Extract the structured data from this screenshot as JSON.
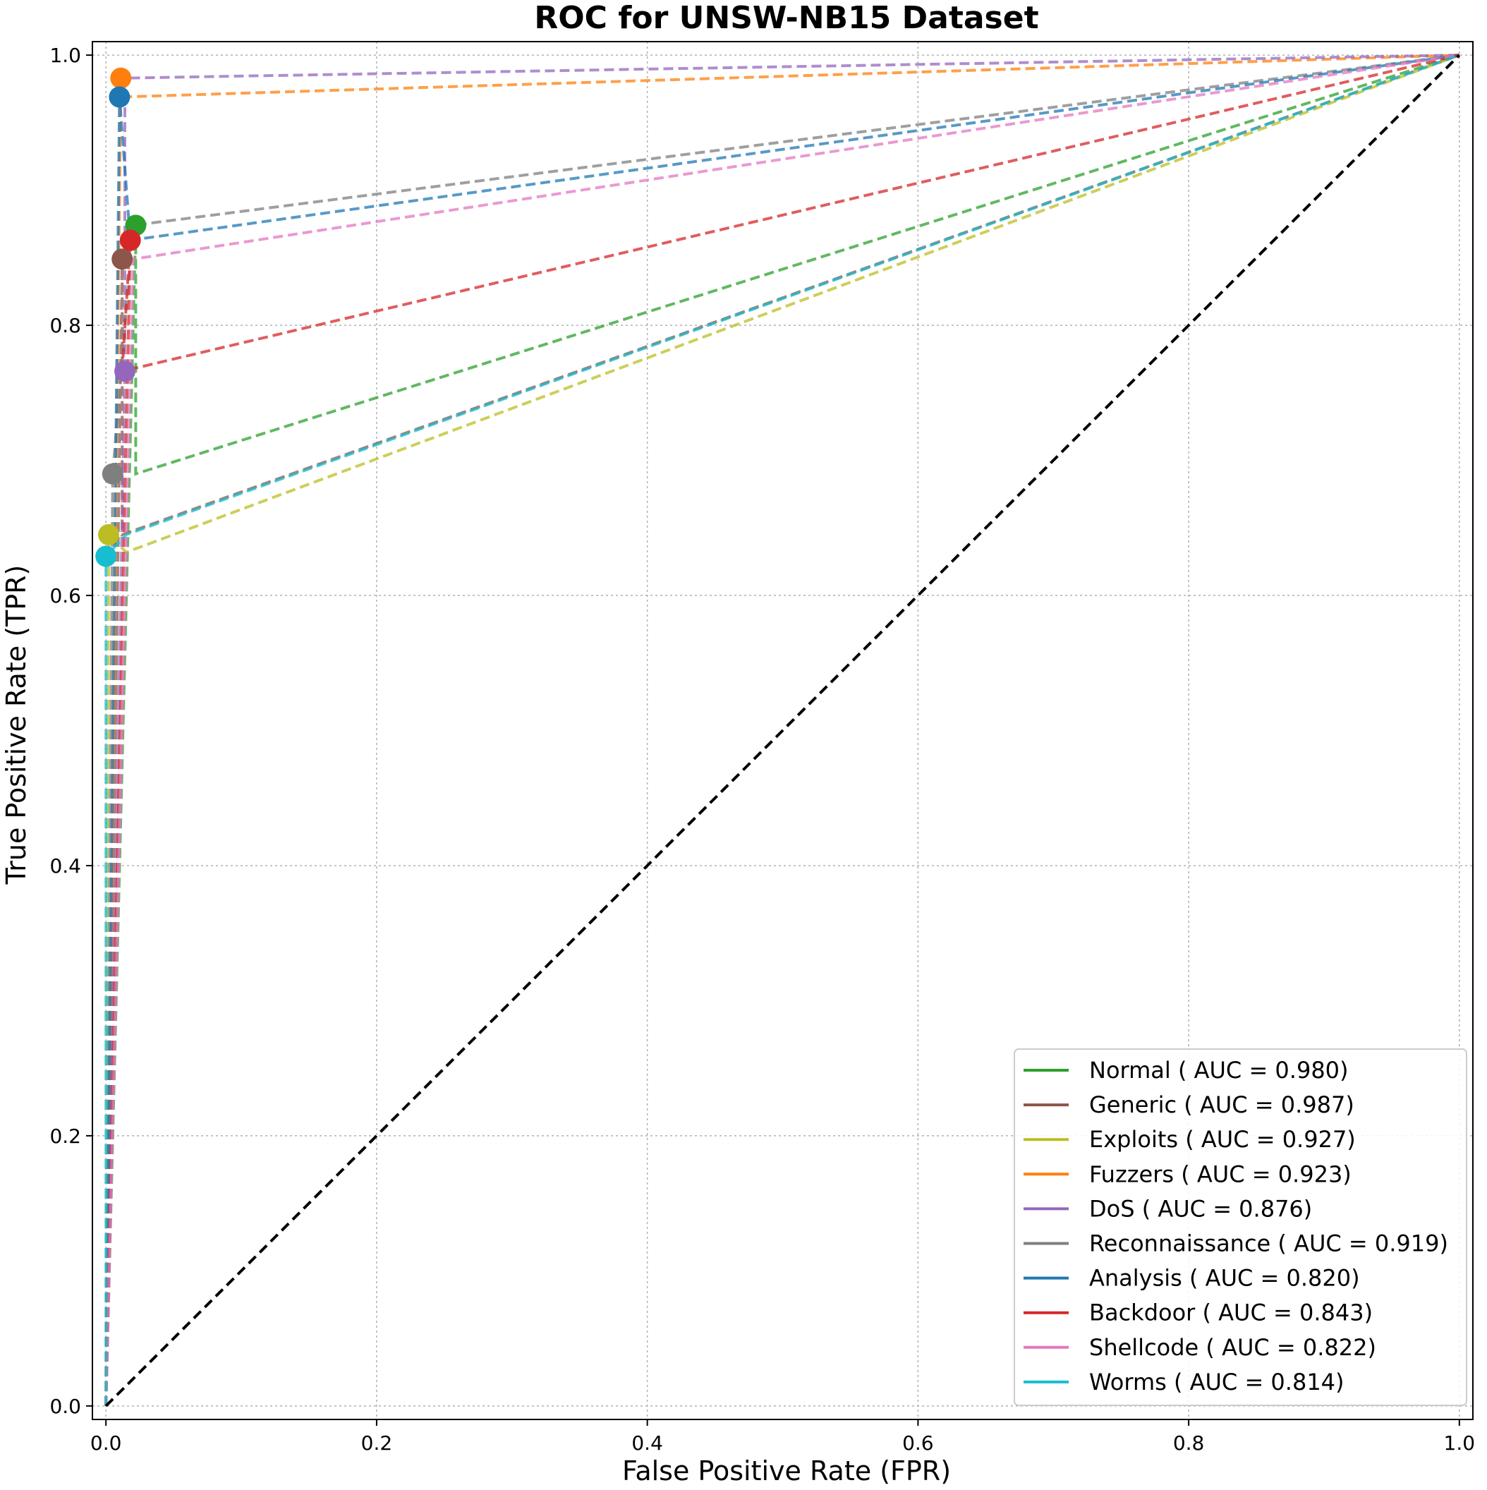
{
  "chart_data": {
    "type": "line",
    "title": "ROC for UNSW-NB15 Dataset",
    "xlabel": "False Positive Rate (FPR)",
    "ylabel": "True Positive Rate (TPR)",
    "xlim": [
      -0.01,
      1.01
    ],
    "ylim": [
      -0.01,
      1.01
    ],
    "xticks": [
      0.0,
      0.2,
      0.4,
      0.6,
      0.8,
      1.0
    ],
    "yticks": [
      0.0,
      0.2,
      0.4,
      0.6,
      0.8,
      1.0
    ],
    "tick_labels": [
      "0.0",
      "0.2",
      "0.4",
      "0.6",
      "0.8",
      "1.0"
    ],
    "grid": true,
    "legend_position": "lower-right",
    "diagonal": {
      "x": [
        0,
        1
      ],
      "y": [
        0,
        1
      ],
      "color": "#000000"
    },
    "series": [
      {
        "name": "Normal",
        "auc": "0.980",
        "legend": "Normal ( AUC = 0.980)",
        "color": "#2ca02c",
        "x": [
          0,
          0.022,
          0.022,
          1
        ],
        "y": [
          0,
          0.874,
          0.69,
          1
        ],
        "marker": [
          0.022,
          0.874
        ]
      },
      {
        "name": "Generic",
        "auc": "0.987",
        "legend": "Generic ( AUC = 0.987)",
        "color": "#8c564b",
        "x": [
          0,
          0.012,
          0.012,
          1
        ],
        "y": [
          0,
          0.849,
          0.645,
          1
        ],
        "marker": [
          0.012,
          0.849
        ]
      },
      {
        "name": "Exploits",
        "auc": "0.927",
        "legend": "Exploits ( AUC = 0.927)",
        "color": "#bcbd22",
        "x": [
          0,
          0.002,
          0.015,
          1
        ],
        "y": [
          0,
          0.645,
          0.632,
          1
        ],
        "marker": [
          0.002,
          0.645
        ]
      },
      {
        "name": "Fuzzers",
        "auc": "0.923",
        "legend": "Fuzzers ( AUC = 0.923)",
        "color": "#ff7f0e",
        "x": [
          0,
          0.011,
          0.011,
          1
        ],
        "y": [
          0,
          0.983,
          0.969,
          1
        ],
        "marker": [
          0.011,
          0.983
        ]
      },
      {
        "name": "DoS",
        "auc": "0.876",
        "legend": "DoS ( AUC = 0.876)",
        "color": "#9467bd",
        "x": [
          0,
          0.014,
          0.014,
          1
        ],
        "y": [
          0,
          0.766,
          0.983,
          1
        ],
        "marker": [
          0.014,
          0.766
        ]
      },
      {
        "name": "Reconnaissance",
        "auc": "0.919",
        "legend": "Reconnaissance ( AUC = 0.919)",
        "color": "#7f7f7f",
        "x": [
          0,
          0.005,
          0.02,
          1
        ],
        "y": [
          0,
          0.69,
          0.874,
          1
        ],
        "marker": [
          0.005,
          0.69
        ]
      },
      {
        "name": "Analysis",
        "auc": "0.820",
        "legend": "Analysis ( AUC = 0.820)",
        "color": "#1f77b4",
        "x": [
          0,
          0.01,
          0.018,
          1
        ],
        "y": [
          0,
          0.969,
          0.863,
          1
        ],
        "marker": [
          0.01,
          0.969
        ]
      },
      {
        "name": "Backdoor",
        "auc": "0.843",
        "legend": "Backdoor ( AUC = 0.843)",
        "color": "#d62728",
        "x": [
          0,
          0.018,
          0.012,
          1
        ],
        "y": [
          0,
          0.863,
          0.766,
          1
        ],
        "marker": [
          0.018,
          0.863
        ]
      },
      {
        "name": "Shellcode",
        "auc": "0.822",
        "legend": "Shellcode ( AUC = 0.822)",
        "color": "#e377c2",
        "x": [
          0,
          0.02,
          0.02,
          1
        ],
        "y": [
          0,
          0.849,
          0.849,
          1
        ],
        "marker": null
      },
      {
        "name": "Worms",
        "auc": "0.814",
        "legend": "Worms ( AUC = 0.814)",
        "color": "#17becf",
        "x": [
          0,
          0.0,
          0.015,
          1
        ],
        "y": [
          0,
          0.629,
          0.645,
          1
        ],
        "marker": [
          0.0,
          0.629
        ]
      }
    ]
  }
}
